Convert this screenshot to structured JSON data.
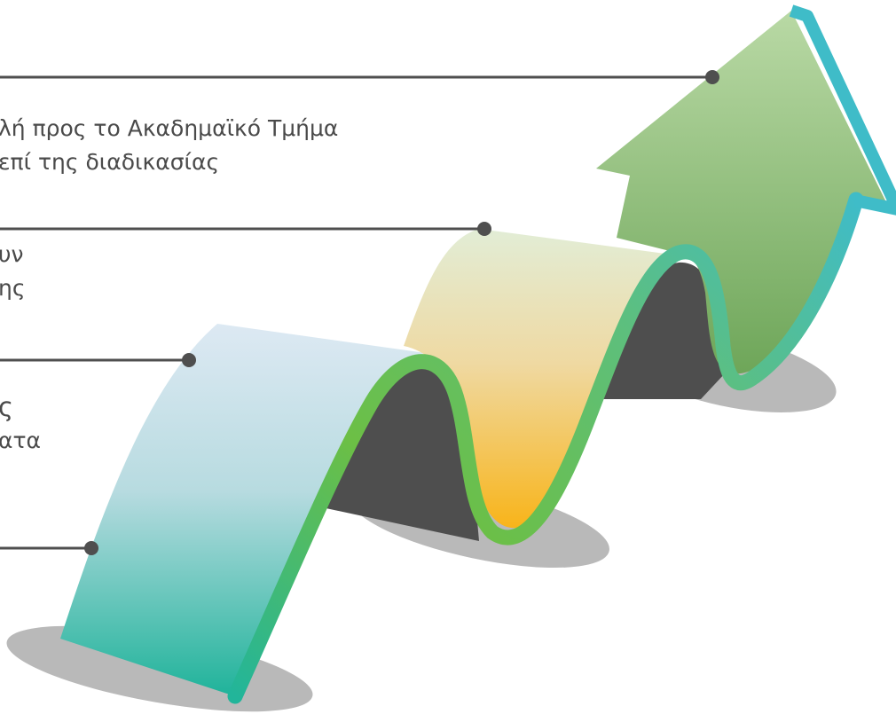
{
  "steps": [
    {
      "lines": [
        "λή προς το Ακαδημαϊκό Τμήμα",
        "επί της διαδικασίας"
      ]
    },
    {
      "lines": [
        "υν",
        "ης"
      ]
    },
    {
      "lines": [
        "ς",
        "ατα"
      ]
    }
  ],
  "colors": {
    "connector_line": "#4f4f4f",
    "connector_dot": "#4f4f4f",
    "shadow": "#b9b9b9",
    "dark_face": "#4e4e4e",
    "ribbon_edge_green": "#6cbf45",
    "ribbon_edge_teal": "#3fbcc8",
    "seg1_top": "#dde9f3",
    "seg1_bottom": "#1fb39a",
    "seg2_top": "#e2edd6",
    "seg2_bottom": "#f8b41a",
    "arrow_top": "#b9d9a5",
    "arrow_bottom": "#6ea659"
  }
}
